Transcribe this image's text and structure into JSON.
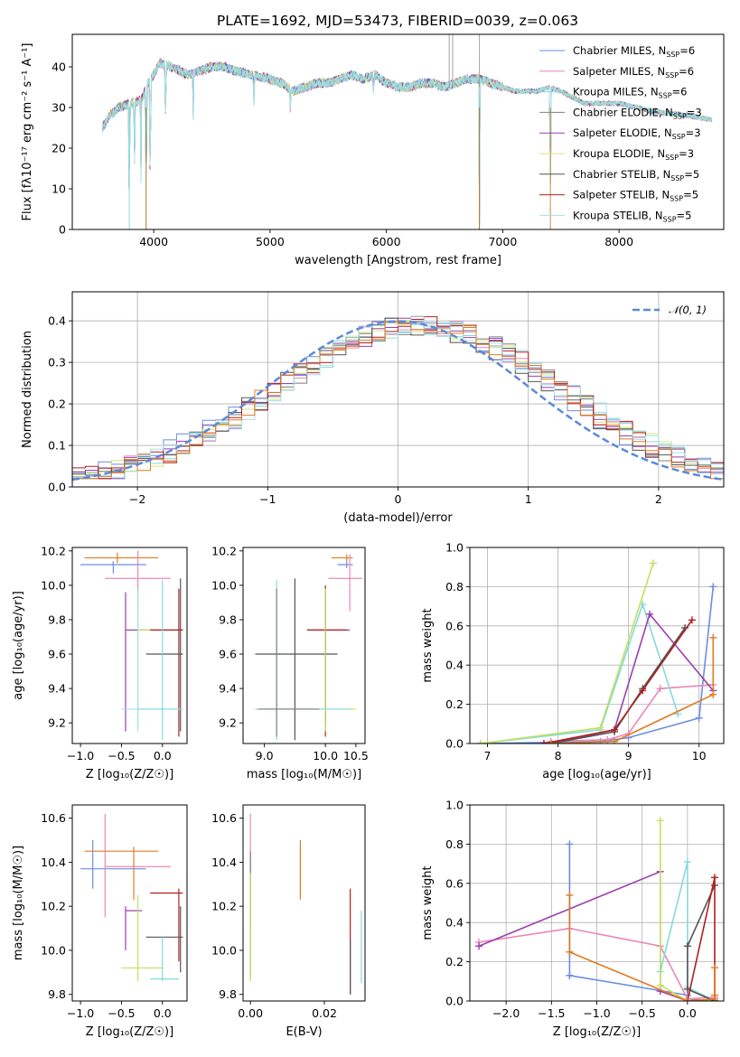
{
  "figure": {
    "title": "PLATE=1692, MJD=53473, FIBERID=0039, z=0.063"
  },
  "colors": [
    "#6a8ee0",
    "#e888b8",
    "#86d9dd",
    "#7f7f7f",
    "#9a3fb0",
    "#d8e47a",
    "#555555",
    "#b21e1e",
    "#a0e0e8",
    "#e07b20",
    "#c0e060"
  ],
  "chart_data": [
    {
      "id": "spectrum",
      "type": "line",
      "xlabel": "wavelength [Angstrom, rest frame]",
      "ylabel": "Flux [fλ10⁻¹⁷ erg cm⁻² s⁻¹ A⁻¹]",
      "xlim": [
        3300,
        8900
      ],
      "ylim": [
        0,
        48
      ],
      "xticks": [
        4000,
        5000,
        6000,
        7000,
        8000
      ],
      "yticks": [
        0,
        10,
        20,
        30,
        40
      ],
      "legend_position": "top-right",
      "legend": [
        {
          "name": "Chabrier MILES, N",
          "sub": "SSP",
          "val": "=6",
          "color": "#6a8ee0"
        },
        {
          "name": "Salpeter MILES, N",
          "sub": "SSP",
          "val": "=6",
          "color": "#e888b8"
        },
        {
          "name": "Kroupa MILES, N",
          "sub": "SSP",
          "val": "=6",
          "color": "#86d9dd"
        },
        {
          "name": "Chabrier ELODIE, N",
          "sub": "SSP",
          "val": "=3",
          "color": "#7f7f7f"
        },
        {
          "name": "Salpeter ELODIE, N",
          "sub": "SSP",
          "val": "=3",
          "color": "#9a3fb0"
        },
        {
          "name": "Kroupa ELODIE, N",
          "sub": "SSP",
          "val": "=3",
          "color": "#d8e47a"
        },
        {
          "name": "Chabrier STELIB, N",
          "sub": "SSP",
          "val": "=5",
          "color": "#555555"
        },
        {
          "name": "Salpeter STELIB, N",
          "sub": "SSP",
          "val": "=5",
          "color": "#b21e1e"
        },
        {
          "name": "Kroupa STELIB, N",
          "sub": "SSP",
          "val": "=5",
          "color": "#a0e0e8"
        }
      ],
      "continuum": [
        [
          3560,
          25
        ],
        [
          3620,
          28
        ],
        [
          3700,
          30
        ],
        [
          3800,
          31
        ],
        [
          3900,
          32
        ],
        [
          3950,
          36
        ],
        [
          4000,
          38
        ],
        [
          4050,
          41
        ],
        [
          4150,
          40
        ],
        [
          4300,
          38
        ],
        [
          4400,
          39
        ],
        [
          4500,
          40
        ],
        [
          4600,
          40
        ],
        [
          4700,
          39
        ],
        [
          4850,
          38
        ],
        [
          5000,
          37
        ],
        [
          5100,
          36
        ],
        [
          5200,
          34
        ],
        [
          5300,
          35
        ],
        [
          5400,
          36
        ],
        [
          5500,
          36
        ],
        [
          5600,
          37
        ],
        [
          5700,
          38
        ],
        [
          5800,
          37
        ],
        [
          5900,
          38
        ],
        [
          6000,
          36
        ],
        [
          6100,
          35
        ],
        [
          6200,
          35
        ],
        [
          6300,
          36
        ],
        [
          6400,
          36
        ],
        [
          6500,
          35
        ],
        [
          6600,
          36
        ],
        [
          6700,
          37
        ],
        [
          6800,
          37
        ],
        [
          6900,
          36
        ],
        [
          7000,
          35
        ],
        [
          7100,
          34
        ],
        [
          7200,
          34
        ],
        [
          7300,
          34
        ],
        [
          7400,
          35
        ],
        [
          7500,
          34
        ],
        [
          7700,
          31
        ],
        [
          8000,
          31
        ],
        [
          8300,
          29
        ],
        [
          8600,
          28
        ],
        [
          8800,
          27
        ]
      ],
      "absorption_lines": [
        [
          3790,
          0
        ],
        [
          3835,
          14
        ],
        [
          3890,
          12
        ],
        [
          3935,
          0
        ],
        [
          3970,
          5
        ],
        [
          4102,
          24
        ],
        [
          4340,
          28
        ],
        [
          4861,
          30
        ],
        [
          5175,
          29
        ],
        [
          5890,
          33
        ],
        [
          6563,
          36
        ],
        [
          6800,
          0
        ],
        [
          7410,
          0
        ]
      ],
      "spike_lines": [
        6540,
        6570,
        6800
      ]
    },
    {
      "id": "residuals",
      "type": "histogram",
      "xlabel": "(data-model)/error",
      "ylabel": "Normed distribution",
      "xlim": [
        -2.5,
        2.5
      ],
      "ylim": [
        0,
        0.47
      ],
      "xticks": [
        -2,
        -1,
        0,
        1,
        2
      ],
      "yticks": [
        0.0,
        0.1,
        0.2,
        0.3,
        0.4
      ],
      "grid": true,
      "legend_position": "top-right",
      "reference_curve": {
        "name": "𝒩(0, 1)",
        "mean": 0,
        "sigma": 1,
        "color": "#5b8ad8"
      },
      "bin_width": 0.1
    },
    {
      "id": "age-vs-Z",
      "type": "errorbar",
      "xlabel": "Z [log₁₀(Z/Z☉)]",
      "ylabel": "age  [log₁₀(age/yr)]",
      "xlim": [
        -1.1,
        0.3
      ],
      "ylim": [
        9.08,
        10.22
      ],
      "xticks": [
        -1.0,
        -0.5,
        0.0
      ],
      "yticks": [
        9.2,
        9.4,
        9.6,
        9.8,
        10.0,
        10.2
      ],
      "points": [
        {
          "x": -0.6,
          "y": 10.12,
          "ex": [
            -1.0,
            -0.2
          ],
          "ey": [
            10.07,
            10.14
          ],
          "color": "#6a8ee0"
        },
        {
          "x": -0.55,
          "y": 10.16,
          "ex": [
            -0.95,
            -0.05
          ],
          "ey": [
            10.13,
            10.19
          ],
          "color": "#e07b20"
        },
        {
          "x": -0.3,
          "y": 10.04,
          "ex": [
            -0.7,
            0.1
          ],
          "ey": [
            9.85,
            10.2
          ],
          "color": "#e888b8"
        },
        {
          "x": -0.45,
          "y": 9.74,
          "ex": [
            -0.45,
            0.25
          ],
          "ey": [
            9.15,
            9.96
          ],
          "color": "#9a3fb0"
        },
        {
          "x": -0.3,
          "y": 9.74,
          "ex": [
            -0.3,
            0.25
          ],
          "ey": [
            9.2,
            9.98
          ],
          "color": "#c0e060"
        },
        {
          "x": 0.2,
          "y": 9.74,
          "ex": [
            -0.15,
            0.25
          ],
          "ey": [
            9.12,
            9.98
          ],
          "color": "#b21e1e"
        },
        {
          "x": 0.22,
          "y": 9.6,
          "ex": [
            -0.2,
            0.25
          ],
          "ey": [
            9.15,
            10.04
          ],
          "color": "#555555"
        },
        {
          "x": -0.3,
          "y": 9.28,
          "ex": [
            -0.5,
            0.25
          ],
          "ey": [
            9.15,
            9.98
          ],
          "color": "#a0e0e8"
        },
        {
          "x": 0.0,
          "y": 9.28,
          "ex": [
            -0.3,
            0.2
          ],
          "ey": [
            9.1,
            10.03
          ],
          "color": "#86d9dd"
        }
      ]
    },
    {
      "id": "age-vs-mass",
      "type": "errorbar",
      "xlabel": "mass [log₁₀(M/M☉)]",
      "ylabel": "",
      "xlim": [
        8.65,
        10.65
      ],
      "ylim": [
        9.08,
        10.22
      ],
      "xticks": [
        9.0,
        10.0,
        10.5
      ],
      "yticks": [
        9.2,
        9.4,
        9.6,
        9.8,
        10.0,
        10.2
      ],
      "points": [
        {
          "x": 10.35,
          "y": 10.12,
          "ex": [
            10.2,
            10.45
          ],
          "ey": [
            10.1,
            10.14
          ],
          "color": "#6a8ee0"
        },
        {
          "x": 10.35,
          "y": 10.16,
          "ex": [
            10.1,
            10.45
          ],
          "ey": [
            10.14,
            10.18
          ],
          "color": "#e07b20"
        },
        {
          "x": 10.4,
          "y": 10.04,
          "ex": [
            10.05,
            10.6
          ],
          "ey": [
            9.85,
            10.18
          ],
          "color": "#e888b8"
        },
        {
          "x": 10.0,
          "y": 9.74,
          "ex": [
            9.7,
            10.4
          ],
          "ey": [
            9.2,
            9.95
          ],
          "color": "#9a3fb0"
        },
        {
          "x": 10.0,
          "y": 9.74,
          "ex": [
            9.7,
            10.35
          ],
          "ey": [
            9.12,
            10.0
          ],
          "color": "#b21e1e"
        },
        {
          "x": 9.5,
          "y": 9.6,
          "ex": [
            8.85,
            10.2
          ],
          "ey": [
            9.1,
            10.04
          ],
          "color": "#555555"
        },
        {
          "x": 10.0,
          "y": 9.28,
          "ex": [
            8.95,
            10.5
          ],
          "ey": [
            9.15,
            9.98
          ],
          "color": "#c0e060"
        },
        {
          "x": 9.2,
          "y": 9.28,
          "ex": [
            8.85,
            10.4
          ],
          "ey": [
            9.1,
            10.03
          ],
          "color": "#86d9dd"
        },
        {
          "x": 9.2,
          "y": 9.28,
          "ex": [
            8.9,
            9.9
          ],
          "ey": [
            9.12,
            9.98
          ],
          "color": "#7f7f7f"
        }
      ]
    },
    {
      "id": "massweight-vs-age",
      "type": "line",
      "xlabel": "age  [log₁₀(age/yr)]",
      "ylabel": "mass weight",
      "xlim": [
        6.75,
        10.35
      ],
      "ylim": [
        0,
        1.0
      ],
      "xticks": [
        7,
        8,
        9,
        10
      ],
      "yticks": [
        0.0,
        0.2,
        0.4,
        0.6,
        0.8,
        1.0
      ],
      "grid": true,
      "series": [
        {
          "color": "#6a8ee0",
          "x": [
            6.9,
            8.6,
            9.0,
            10.0,
            10.2
          ],
          "y": [
            0.0,
            0.01,
            0.03,
            0.13,
            0.8
          ]
        },
        {
          "color": "#e888b8",
          "x": [
            7.9,
            8.7,
            9.0,
            9.45,
            10.2
          ],
          "y": [
            0.01,
            0.02,
            0.05,
            0.28,
            0.3
          ]
        },
        {
          "color": "#86d9dd",
          "x": [
            6.9,
            8.6,
            9.2,
            9.7
          ],
          "y": [
            0.0,
            0.07,
            0.71,
            0.15
          ]
        },
        {
          "color": "#9a3fb0",
          "x": [
            7.9,
            8.8,
            9.3,
            10.2
          ],
          "y": [
            0.0,
            0.07,
            0.66,
            0.27
          ]
        },
        {
          "color": "#c0e060",
          "x": [
            6.9,
            8.6,
            9.35
          ],
          "y": [
            0.0,
            0.08,
            0.92
          ]
        },
        {
          "color": "#555555",
          "x": [
            7.9,
            8.8,
            9.2,
            9.8
          ],
          "y": [
            0.0,
            0.06,
            0.28,
            0.59
          ]
        },
        {
          "color": "#b21e1e",
          "x": [
            7.8,
            8.8,
            9.2,
            9.9
          ],
          "y": [
            0.0,
            0.07,
            0.27,
            0.63
          ]
        },
        {
          "color": "#e07b20",
          "x": [
            7.9,
            8.8,
            10.2,
            10.2
          ],
          "y": [
            0.0,
            0.01,
            0.25,
            0.54
          ]
        }
      ]
    },
    {
      "id": "mass-vs-Z",
      "type": "errorbar",
      "xlabel": "Z [log₁₀(Z/Z☉)]",
      "ylabel": "mass [log₁₀(M/M☉)]",
      "xlim": [
        -1.1,
        0.3
      ],
      "ylim": [
        9.77,
        10.66
      ],
      "xticks": [
        -1.0,
        -0.5,
        0.0
      ],
      "yticks": [
        9.8,
        10.0,
        10.2,
        10.4,
        10.6
      ],
      "points": [
        {
          "x": -0.85,
          "y": 10.37,
          "ex": [
            -1.0,
            -0.2
          ],
          "ey": [
            10.28,
            10.5
          ],
          "color": "#6a8ee0"
        },
        {
          "x": -0.35,
          "y": 10.45,
          "ex": [
            -0.95,
            -0.05
          ],
          "ey": [
            10.23,
            10.47
          ],
          "color": "#e07b20"
        },
        {
          "x": -0.7,
          "y": 10.38,
          "ex": [
            -0.7,
            0.1
          ],
          "ey": [
            10.15,
            10.62
          ],
          "color": "#e888b8"
        },
        {
          "x": -0.45,
          "y": 10.18,
          "ex": [
            -0.45,
            -0.25
          ],
          "ey": [
            10.0,
            10.2
          ],
          "color": "#9a3fb0"
        },
        {
          "x": 0.2,
          "y": 10.26,
          "ex": [
            -0.15,
            0.25
          ],
          "ey": [
            9.95,
            10.28
          ],
          "color": "#b21e1e"
        },
        {
          "x": 0.22,
          "y": 10.06,
          "ex": [
            -0.2,
            0.25
          ],
          "ey": [
            9.9,
            10.2
          ],
          "color": "#555555"
        },
        {
          "x": -0.3,
          "y": 9.92,
          "ex": [
            -0.5,
            0.0
          ],
          "ey": [
            9.86,
            10.25
          ],
          "color": "#c0e060"
        },
        {
          "x": 0.0,
          "y": 9.87,
          "ex": [
            -0.15,
            0.2
          ],
          "ey": [
            9.86,
            10.06
          ],
          "color": "#86d9dd"
        }
      ]
    },
    {
      "id": "mass-vs-EBV",
      "type": "errorbar",
      "xlabel": "E(B-V)",
      "ylabel": "",
      "xlim": [
        -0.002,
        0.031
      ],
      "ylim": [
        9.77,
        10.66
      ],
      "xticks": [
        0.0,
        0.02
      ],
      "yticks": [
        9.8,
        10.0,
        10.2,
        10.4,
        10.6
      ],
      "points": [
        {
          "x": 0.0,
          "y": 10.37,
          "ex": [
            0.0,
            0.0
          ],
          "ey": [
            10.1,
            10.62
          ],
          "color": "#e888b8"
        },
        {
          "x": 0.0,
          "y": 10.3,
          "ex": [
            0.0,
            0.0
          ],
          "ey": [
            9.88,
            10.45
          ],
          "color": "#7f7f7f"
        },
        {
          "x": 0.0,
          "y": 10.1,
          "ex": [
            0.0,
            0.0
          ],
          "ey": [
            9.86,
            10.35
          ],
          "color": "#c0e060"
        },
        {
          "x": 0.0135,
          "y": 10.37,
          "ex": [
            0.0135,
            0.0135
          ],
          "ey": [
            10.23,
            10.5
          ],
          "color": "#e07b20"
        },
        {
          "x": 0.027,
          "y": 10.1,
          "ex": [
            0.027,
            0.027
          ],
          "ey": [
            9.8,
            10.28
          ],
          "color": "#b21e1e"
        },
        {
          "x": 0.027,
          "y": 9.98,
          "ex": [
            0.027,
            0.027
          ],
          "ey": [
            9.8,
            10.05
          ],
          "color": "#555555"
        },
        {
          "x": 0.03,
          "y": 10.0,
          "ex": [
            0.03,
            0.03
          ],
          "ey": [
            9.85,
            10.18
          ],
          "color": "#86d9dd"
        }
      ]
    },
    {
      "id": "massweight-vs-Z",
      "type": "line",
      "xlabel": "Z [log₁₀(Z/Z☉)]",
      "ylabel": "mass weight",
      "xlim": [
        -2.4,
        0.4
      ],
      "ylim": [
        0,
        1.0
      ],
      "xticks": [
        -2.0,
        -1.5,
        -1.0,
        -0.5,
        0.0
      ],
      "yticks": [
        0.0,
        0.2,
        0.4,
        0.6,
        0.8,
        1.0
      ],
      "grid": true,
      "series": [
        {
          "color": "#6a8ee0",
          "x": [
            -1.3,
            -1.3,
            -1.3,
            0.0,
            0.0,
            0.3
          ],
          "y": [
            0.8,
            0.13,
            0.13,
            0.03,
            0.01,
            0.0
          ]
        },
        {
          "color": "#e888b8",
          "x": [
            -2.3,
            -1.3,
            -0.3,
            0.0,
            0.3
          ],
          "y": [
            0.3,
            0.37,
            0.28,
            0.01,
            0.02
          ]
        },
        {
          "color": "#86d9dd",
          "x": [
            -0.3,
            0.0,
            0.0,
            0.3
          ],
          "y": [
            0.15,
            0.71,
            0.07,
            0.0
          ]
        },
        {
          "color": "#9a3fb0",
          "x": [
            -2.3,
            -0.3,
            -0.3,
            0.0
          ],
          "y": [
            0.28,
            0.66,
            0.05,
            0.0
          ]
        },
        {
          "color": "#c0e060",
          "x": [
            -0.3,
            -0.3,
            0.0,
            0.3
          ],
          "y": [
            0.92,
            0.08,
            0.0,
            0.0
          ]
        },
        {
          "color": "#555555",
          "x": [
            0.3,
            0.0,
            0.0,
            0.3
          ],
          "y": [
            0.59,
            0.28,
            0.06,
            0.0
          ]
        },
        {
          "color": "#b21e1e",
          "x": [
            0.0,
            0.3,
            0.3
          ],
          "y": [
            0.0,
            0.63,
            0.0
          ]
        },
        {
          "color": "#e07b20",
          "x": [
            -1.3,
            -1.3,
            0.0,
            0.3,
            0.3,
            0.3
          ],
          "y": [
            0.54,
            0.25,
            0.0,
            0.01,
            0.17,
            0.03
          ]
        }
      ]
    }
  ]
}
